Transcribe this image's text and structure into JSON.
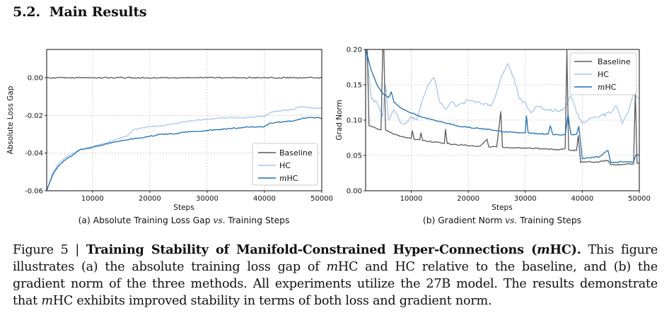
{
  "section": {
    "number": "5.2.",
    "title": "Main Results"
  },
  "legend": [
    {
      "label": "Baseline",
      "color": "#5a5a5a"
    },
    {
      "label": "HC",
      "color": "#a9c6e8"
    },
    {
      "label_prefix": "m",
      "label": "HC",
      "color": "#1f6fb4"
    }
  ],
  "chart_data": [
    {
      "type": "line",
      "panel": "(a)",
      "subcaption": {
        "prefix": "(a) Absolute Training Loss Gap",
        "vs": "vs.",
        "suffix": "Training Steps"
      },
      "xlabel": "Steps",
      "ylabel": "Absolute Loss Gap",
      "xlim": [
        2000,
        50000
      ],
      "ylim": [
        -0.06,
        0.015
      ],
      "xticks": [
        10000,
        20000,
        30000,
        40000,
        50000
      ],
      "yticks": [
        0.0,
        -0.02,
        -0.04,
        -0.06
      ],
      "ytick_labels": [
        "0.00",
        "-0.02",
        "-0.04",
        "-0.06"
      ],
      "grid": true,
      "legend_position": "lower-right",
      "series": [
        {
          "name": "Baseline",
          "x": [
            2000,
            50000
          ],
          "y": [
            0.0,
            0.0
          ]
        },
        {
          "name": "HC",
          "x": [
            2000,
            3000,
            4000,
            5000,
            6000,
            8000,
            10000,
            12000,
            14000,
            16000,
            17000,
            18000,
            20000,
            22000,
            24000,
            26000,
            28000,
            30000,
            32000,
            34000,
            36000,
            38000,
            40000,
            41000,
            43000,
            45000,
            46000,
            48000,
            50000
          ],
          "y": [
            -0.06,
            -0.051,
            -0.046,
            -0.043,
            -0.041,
            -0.038,
            -0.0365,
            -0.035,
            -0.033,
            -0.031,
            -0.028,
            -0.027,
            -0.026,
            -0.0255,
            -0.0245,
            -0.0235,
            -0.0225,
            -0.022,
            -0.0215,
            -0.021,
            -0.0215,
            -0.021,
            -0.0205,
            -0.0185,
            -0.0175,
            -0.017,
            -0.0155,
            -0.016,
            -0.016
          ]
        },
        {
          "name": "mHC",
          "x": [
            2000,
            3000,
            4000,
            5000,
            6000,
            8000,
            10000,
            12000,
            14000,
            16000,
            18000,
            20000,
            22000,
            24000,
            26000,
            28000,
            30000,
            32000,
            34000,
            36000,
            38000,
            40000,
            41000,
            43000,
            45000,
            46000,
            48000,
            50000
          ],
          "y": [
            -0.06,
            -0.052,
            -0.047,
            -0.044,
            -0.042,
            -0.038,
            -0.037,
            -0.0355,
            -0.034,
            -0.033,
            -0.032,
            -0.031,
            -0.03,
            -0.03,
            -0.029,
            -0.0285,
            -0.028,
            -0.0275,
            -0.027,
            -0.0265,
            -0.026,
            -0.026,
            -0.024,
            -0.0235,
            -0.023,
            -0.022,
            -0.021,
            -0.0215
          ]
        }
      ]
    },
    {
      "type": "line",
      "panel": "(b)",
      "subcaption": {
        "prefix": "(b) Gradient Norm",
        "vs": "vs.",
        "suffix": "Training Steps"
      },
      "xlabel": "Steps",
      "ylabel": "Grad Norm",
      "xlim": [
        2000,
        50000
      ],
      "ylim": [
        0.0,
        0.2
      ],
      "xticks": [
        10000,
        20000,
        30000,
        40000,
        50000
      ],
      "yticks": [
        0.0,
        0.05,
        0.1,
        0.15,
        0.2
      ],
      "ytick_labels": [
        "0.00",
        "0.05",
        "0.10",
        "0.15",
        "0.20"
      ],
      "grid": true,
      "legend_position": "upper-right",
      "series": [
        {
          "name": "Baseline",
          "x": [
            2000,
            2300,
            2600,
            4700,
            5000,
            5200,
            5500,
            5800,
            6500,
            8000,
            10000,
            10200,
            10500,
            11500,
            11700,
            12000,
            14000,
            15800,
            16000,
            16300,
            18000,
            19500,
            20000,
            22000,
            23300,
            23600,
            25000,
            25700,
            26000,
            26300,
            28000,
            30000,
            32000,
            34000,
            36000,
            37000,
            37300,
            37600,
            38000,
            39000,
            39300,
            39700,
            40000,
            41000,
            43000,
            44500,
            45000,
            47000,
            49000,
            49300,
            49600,
            50000
          ],
          "y": [
            0.2,
            0.2,
            0.092,
            0.086,
            0.2,
            0.2,
            0.086,
            0.085,
            0.082,
            0.077,
            0.074,
            0.085,
            0.073,
            0.072,
            0.082,
            0.071,
            0.069,
            0.067,
            0.087,
            0.067,
            0.065,
            0.065,
            0.064,
            0.063,
            0.073,
            0.062,
            0.062,
            0.112,
            0.062,
            0.061,
            0.061,
            0.06,
            0.06,
            0.059,
            0.058,
            0.06,
            0.2,
            0.058,
            0.057,
            0.057,
            0.078,
            0.04,
            0.041,
            0.041,
            0.041,
            0.043,
            0.037,
            0.037,
            0.038,
            0.14,
            0.039,
            0.039
          ]
        },
        {
          "name": "HC",
          "x": [
            2000,
            2500,
            3000,
            4000,
            5000,
            5500,
            6000,
            7000,
            8000,
            9000,
            10000,
            11000,
            12000,
            13000,
            14000,
            15000,
            16000,
            17000,
            18000,
            20000,
            22000,
            24000,
            25000,
            26000,
            27000,
            28000,
            29000,
            30000,
            31000,
            32000,
            34000,
            36000,
            37000,
            38000,
            39000,
            40000,
            41000,
            43000,
            45000,
            46000,
            47000,
            48000,
            49000,
            50000
          ],
          "y": [
            0.2,
            0.17,
            0.13,
            0.125,
            0.105,
            0.15,
            0.1,
            0.115,
            0.098,
            0.095,
            0.105,
            0.1,
            0.13,
            0.15,
            0.16,
            0.125,
            0.115,
            0.125,
            0.12,
            0.128,
            0.125,
            0.12,
            0.14,
            0.165,
            0.18,
            0.16,
            0.13,
            0.125,
            0.11,
            0.12,
            0.115,
            0.112,
            0.117,
            0.135,
            0.11,
            0.095,
            0.1,
            0.105,
            0.11,
            0.12,
            0.095,
            0.11,
            0.14,
            0.13
          ]
        },
        {
          "name": "mHC",
          "x": [
            2000,
            3000,
            4000,
            5000,
            6000,
            6500,
            7000,
            8000,
            10000,
            12000,
            14000,
            16000,
            18000,
            20000,
            22000,
            24000,
            25000,
            26000,
            28000,
            30000,
            30200,
            30500,
            32000,
            34000,
            34400,
            34800,
            36000,
            37000,
            37500,
            38000,
            39000,
            39400,
            39800,
            40000,
            41000,
            43000,
            44500,
            45000,
            47000,
            49000,
            49500,
            50000
          ],
          "y": [
            0.2,
            0.17,
            0.15,
            0.138,
            0.132,
            0.14,
            0.125,
            0.118,
            0.11,
            0.104,
            0.1,
            0.096,
            0.092,
            0.09,
            0.088,
            0.086,
            0.085,
            0.083,
            0.083,
            0.082,
            0.106,
            0.082,
            0.081,
            0.08,
            0.092,
            0.08,
            0.079,
            0.079,
            0.108,
            0.08,
            0.08,
            0.091,
            0.06,
            0.045,
            0.047,
            0.048,
            0.057,
            0.04,
            0.041,
            0.041,
            0.052,
            0.05
          ]
        }
      ]
    }
  ],
  "caption": {
    "label": "Figure 5 |",
    "bold_title_prefix": "Training Stability of Manifold-Constrained Hyper-Connections (",
    "bold_title_m": "m",
    "bold_title_suffix": "HC).",
    "text_1": "This figure illustrates (a) the absolute training loss gap of ",
    "m1": "m",
    "text_2": "HC and HC relative to the baseline, and (b) the gradient norm of the three methods.  All experiments utilize the 27B model.  The results demonstrate that ",
    "m2": "m",
    "text_3": "HC exhibits improved stability in terms of both loss and gradient norm."
  }
}
